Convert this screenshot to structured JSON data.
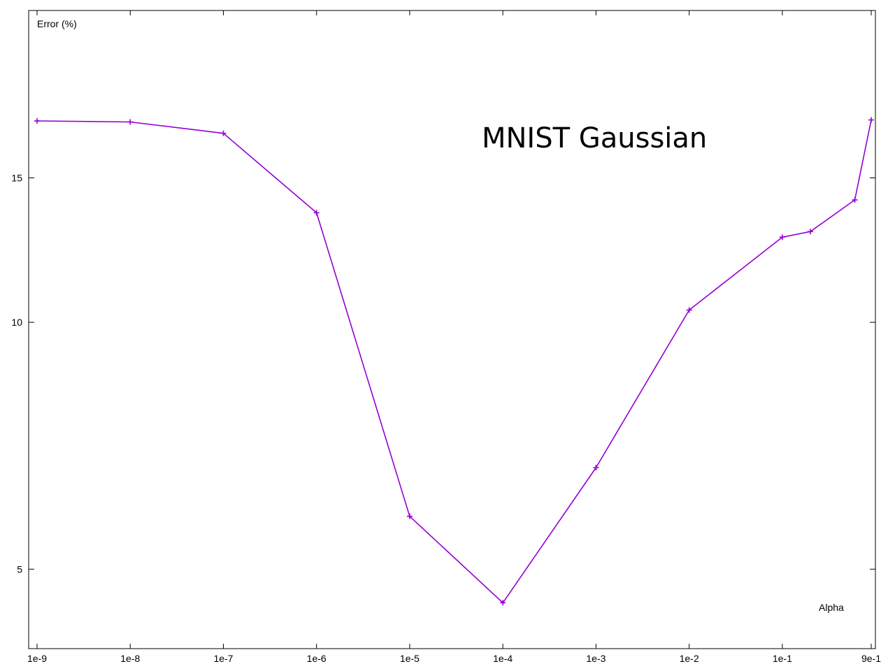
{
  "chart_data": {
    "type": "line",
    "title": "MNIST Gaussian",
    "xlabel": "Alpha",
    "ylabel": "Error (%)",
    "x_scale": "log",
    "y_scale": "log",
    "xlim": [
      1e-09,
      0.9
    ],
    "ylim": [
      4.0,
      24.0
    ],
    "x_ticks": [
      {
        "value": 1e-09,
        "label": "1e-9"
      },
      {
        "value": 1e-08,
        "label": "1e-8"
      },
      {
        "value": 1e-07,
        "label": "1e-7"
      },
      {
        "value": 1e-06,
        "label": "1e-6"
      },
      {
        "value": 1e-05,
        "label": "1e-5"
      },
      {
        "value": 0.0001,
        "label": "1e-4"
      },
      {
        "value": 0.001,
        "label": "1e-3"
      },
      {
        "value": 0.01,
        "label": "1e-2"
      },
      {
        "value": 0.1,
        "label": "1e-1"
      },
      {
        "value": 0.9,
        "label": "9e-1"
      }
    ],
    "y_ticks": [
      {
        "value": 5,
        "label": "5"
      },
      {
        "value": 10,
        "label": "10"
      },
      {
        "value": 15,
        "label": "15"
      }
    ],
    "grid": false,
    "series": [
      {
        "color": "#9400d3",
        "marker": "plus",
        "points": [
          {
            "x": 1e-09,
            "y": 17.6
          },
          {
            "x": 1e-08,
            "y": 17.55
          },
          {
            "x": 1e-07,
            "y": 17.0
          },
          {
            "x": 1e-06,
            "y": 13.6
          },
          {
            "x": 1e-05,
            "y": 5.8
          },
          {
            "x": 0.0001,
            "y": 4.55
          },
          {
            "x": 0.001,
            "y": 6.65
          },
          {
            "x": 0.01,
            "y": 10.35
          },
          {
            "x": 0.1,
            "y": 12.7
          },
          {
            "x": 0.2,
            "y": 12.9
          },
          {
            "x": 0.6,
            "y": 14.1
          },
          {
            "x": 0.9,
            "y": 17.65
          }
        ]
      }
    ]
  }
}
